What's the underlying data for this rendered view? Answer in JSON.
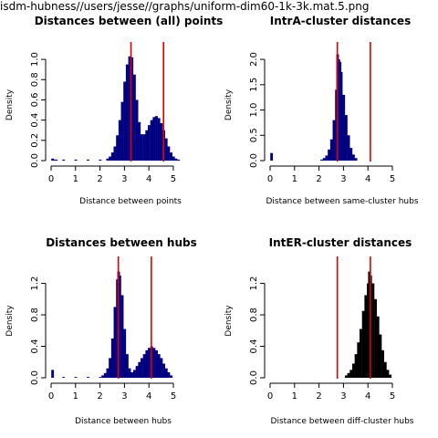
{
  "header": {
    "path": "isdm-hubness//users/jesse//graphs/uniform-dim60-1k-3k.mat.5.png"
  },
  "chart_data": [
    {
      "type": "histogram",
      "title": "Distances between (all) points",
      "xlabel": "Distance between points",
      "ylabel": "Density",
      "xlim": [
        0,
        5.6
      ],
      "ylim": [
        0,
        1.1
      ],
      "xticks": [
        0,
        1,
        2,
        3,
        4,
        5
      ],
      "yticks": [
        0.0,
        0.2,
        0.4,
        0.6,
        0.8,
        1.0
      ],
      "bar_color": "#000080",
      "vlines": [
        3.27,
        4.6
      ],
      "vline_color": "#e00000",
      "bins": [
        {
          "x": 0.05,
          "y": 0.02
        },
        {
          "x": 0.1,
          "y": 0.01
        },
        {
          "x": 0.2,
          "y": 0.01
        },
        {
          "x": 0.5,
          "y": 0.01
        },
        {
          "x": 1.0,
          "y": 0.01
        },
        {
          "x": 1.5,
          "y": 0.01
        },
        {
          "x": 2.0,
          "y": 0.01
        },
        {
          "x": 2.3,
          "y": 0.02
        },
        {
          "x": 2.4,
          "y": 0.04
        },
        {
          "x": 2.5,
          "y": 0.08
        },
        {
          "x": 2.6,
          "y": 0.14
        },
        {
          "x": 2.7,
          "y": 0.25
        },
        {
          "x": 2.8,
          "y": 0.4
        },
        {
          "x": 2.9,
          "y": 0.58
        },
        {
          "x": 3.0,
          "y": 0.78
        },
        {
          "x": 3.1,
          "y": 0.95
        },
        {
          "x": 3.2,
          "y": 1.03
        },
        {
          "x": 3.3,
          "y": 1.02
        },
        {
          "x": 3.4,
          "y": 0.85
        },
        {
          "x": 3.5,
          "y": 0.6
        },
        {
          "x": 3.6,
          "y": 0.38
        },
        {
          "x": 3.7,
          "y": 0.26
        },
        {
          "x": 3.8,
          "y": 0.26
        },
        {
          "x": 3.9,
          "y": 0.3
        },
        {
          "x": 4.0,
          "y": 0.35
        },
        {
          "x": 4.1,
          "y": 0.4
        },
        {
          "x": 4.2,
          "y": 0.43
        },
        {
          "x": 4.3,
          "y": 0.44
        },
        {
          "x": 4.4,
          "y": 0.42
        },
        {
          "x": 4.5,
          "y": 0.37
        },
        {
          "x": 4.6,
          "y": 0.3
        },
        {
          "x": 4.7,
          "y": 0.22
        },
        {
          "x": 4.8,
          "y": 0.14
        },
        {
          "x": 4.9,
          "y": 0.08
        },
        {
          "x": 5.0,
          "y": 0.04
        },
        {
          "x": 5.1,
          "y": 0.02
        },
        {
          "x": 5.2,
          "y": 0.01
        }
      ]
    },
    {
      "type": "histogram",
      "title": "IntrA-cluster distances",
      "xlabel": "Distance between same-cluster hubs",
      "ylabel": "Density",
      "xlim": [
        0,
        5
      ],
      "ylim": [
        0,
        2.2
      ],
      "xticks": [
        0,
        1,
        2,
        3,
        4,
        5
      ],
      "yticks": [
        0.0,
        0.5,
        1.0,
        1.5,
        2.0
      ],
      "bar_color": "#000080",
      "vlines": [
        2.75,
        4.1
      ],
      "vline_color": "#e00000",
      "bins": [
        {
          "x": 0.05,
          "y": 0.15
        },
        {
          "x": 2.1,
          "y": 0.02
        },
        {
          "x": 2.2,
          "y": 0.05
        },
        {
          "x": 2.3,
          "y": 0.1
        },
        {
          "x": 2.4,
          "y": 0.22
        },
        {
          "x": 2.5,
          "y": 0.42
        },
        {
          "x": 2.6,
          "y": 0.8
        },
        {
          "x": 2.7,
          "y": 1.4
        },
        {
          "x": 2.75,
          "y": 2.1
        },
        {
          "x": 2.8,
          "y": 2.0
        },
        {
          "x": 2.85,
          "y": 1.95
        },
        {
          "x": 2.9,
          "y": 1.75
        },
        {
          "x": 3.0,
          "y": 1.3
        },
        {
          "x": 3.1,
          "y": 0.9
        },
        {
          "x": 3.2,
          "y": 0.5
        },
        {
          "x": 3.3,
          "y": 0.25
        },
        {
          "x": 3.4,
          "y": 0.12
        },
        {
          "x": 3.5,
          "y": 0.05
        }
      ]
    },
    {
      "type": "histogram",
      "title": "Distances between hubs",
      "xlabel": "Distance between hubs",
      "ylabel": "Density",
      "xlim": [
        0,
        5
      ],
      "ylim": [
        0,
        1.45
      ],
      "xticks": [
        0,
        1,
        2,
        3,
        4,
        5
      ],
      "yticks": [
        0.0,
        0.4,
        0.8,
        1.2
      ],
      "bar_color": "#000080",
      "vlines": [
        2.75,
        4.1
      ],
      "vline_color": "#e00000",
      "bins": [
        {
          "x": 0.05,
          "y": 0.1
        },
        {
          "x": 0.5,
          "y": 0.01
        },
        {
          "x": 1.0,
          "y": 0.01
        },
        {
          "x": 1.5,
          "y": 0.01
        },
        {
          "x": 2.0,
          "y": 0.01
        },
        {
          "x": 2.1,
          "y": 0.03
        },
        {
          "x": 2.2,
          "y": 0.06
        },
        {
          "x": 2.3,
          "y": 0.12
        },
        {
          "x": 2.4,
          "y": 0.25
        },
        {
          "x": 2.5,
          "y": 0.5
        },
        {
          "x": 2.6,
          "y": 0.9
        },
        {
          "x": 2.7,
          "y": 1.25
        },
        {
          "x": 2.75,
          "y": 1.35
        },
        {
          "x": 2.8,
          "y": 1.3
        },
        {
          "x": 2.9,
          "y": 1.05
        },
        {
          "x": 3.0,
          "y": 0.62
        },
        {
          "x": 3.1,
          "y": 0.3
        },
        {
          "x": 3.2,
          "y": 0.12
        },
        {
          "x": 3.3,
          "y": 0.07
        },
        {
          "x": 3.4,
          "y": 0.1
        },
        {
          "x": 3.5,
          "y": 0.15
        },
        {
          "x": 3.6,
          "y": 0.2
        },
        {
          "x": 3.7,
          "y": 0.25
        },
        {
          "x": 3.8,
          "y": 0.3
        },
        {
          "x": 3.9,
          "y": 0.35
        },
        {
          "x": 4.0,
          "y": 0.38
        },
        {
          "x": 4.1,
          "y": 0.4
        },
        {
          "x": 4.2,
          "y": 0.38
        },
        {
          "x": 4.3,
          "y": 0.35
        },
        {
          "x": 4.4,
          "y": 0.3
        },
        {
          "x": 4.5,
          "y": 0.25
        },
        {
          "x": 4.6,
          "y": 0.18
        },
        {
          "x": 4.7,
          "y": 0.12
        },
        {
          "x": 4.8,
          "y": 0.07
        },
        {
          "x": 4.9,
          "y": 0.03
        }
      ]
    },
    {
      "type": "histogram",
      "title": "IntER-cluster distances",
      "xlabel": "Distance between diff-cluster hubs",
      "ylabel": "Density",
      "xlim": [
        0,
        5
      ],
      "ylim": [
        0,
        1.45
      ],
      "xticks": [
        0,
        1,
        2,
        3,
        4,
        5
      ],
      "yticks": [
        0.0,
        0.4,
        0.8,
        1.2
      ],
      "bar_color": "#000000",
      "vlines": [
        2.75,
        4.1
      ],
      "vline_color": "#e00000",
      "bins": [
        {
          "x": 3.1,
          "y": 0.03
        },
        {
          "x": 3.2,
          "y": 0.06
        },
        {
          "x": 3.3,
          "y": 0.1
        },
        {
          "x": 3.4,
          "y": 0.18
        },
        {
          "x": 3.5,
          "y": 0.3
        },
        {
          "x": 3.6,
          "y": 0.45
        },
        {
          "x": 3.7,
          "y": 0.62
        },
        {
          "x": 3.8,
          "y": 0.85
        },
        {
          "x": 3.9,
          "y": 1.05
        },
        {
          "x": 4.0,
          "y": 1.2
        },
        {
          "x": 4.05,
          "y": 1.35
        },
        {
          "x": 4.1,
          "y": 1.3
        },
        {
          "x": 4.2,
          "y": 1.2
        },
        {
          "x": 4.3,
          "y": 1.0
        },
        {
          "x": 4.4,
          "y": 0.78
        },
        {
          "x": 4.5,
          "y": 0.55
        },
        {
          "x": 4.6,
          "y": 0.35
        },
        {
          "x": 4.7,
          "y": 0.2
        },
        {
          "x": 4.8,
          "y": 0.1
        },
        {
          "x": 4.9,
          "y": 0.04
        }
      ]
    }
  ]
}
